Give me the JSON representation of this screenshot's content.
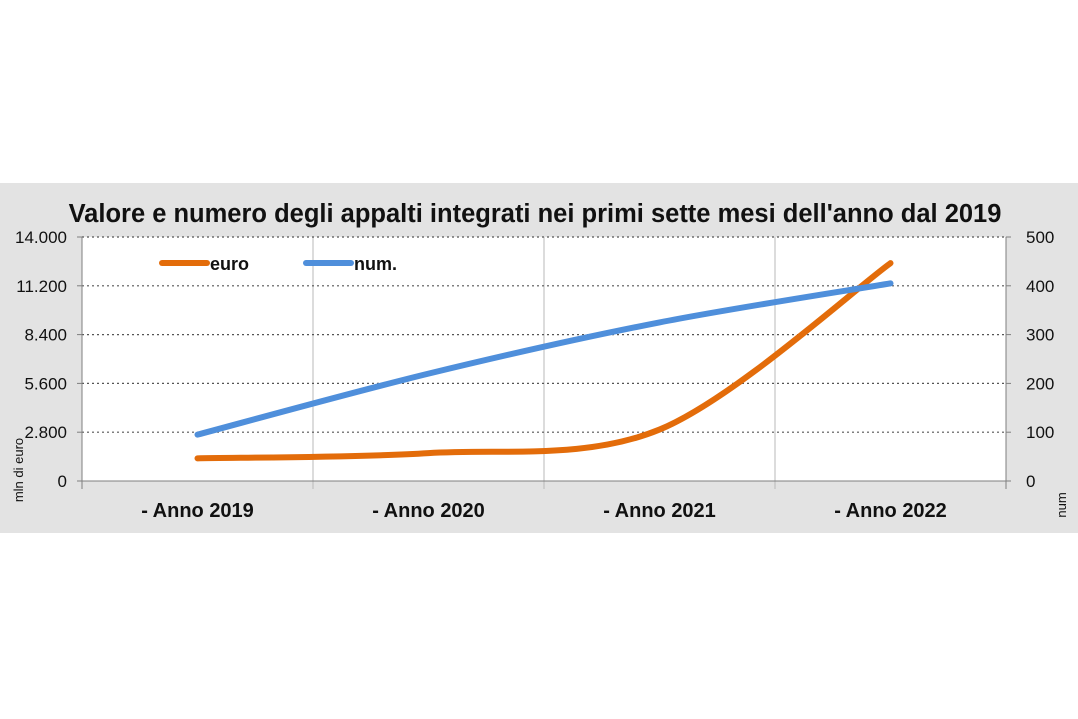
{
  "chart_data": {
    "type": "line",
    "title": "Valore e numero degli appalti integrati nei primi sette mesi dell'anno dal 2019",
    "categories": [
      "- Anno 2019",
      "- Anno 2020",
      "- Anno 2021",
      "- Anno 2022"
    ],
    "y_left": {
      "label": "mln di  euro",
      "ticks": [
        "0",
        "2.800",
        "5.600",
        "8.400",
        "11.200",
        "14.000"
      ],
      "ylim": [
        0,
        14000
      ]
    },
    "y_right": {
      "label": "num",
      "ticks": [
        "0",
        "100",
        "200",
        "300",
        "400",
        "500"
      ],
      "ylim": [
        0,
        500
      ]
    },
    "series": [
      {
        "name": "euro",
        "axis": "left",
        "color": "#e36c0a",
        "values": [
          1300,
          1600,
          2950,
          12500
        ]
      },
      {
        "name": "num.",
        "axis": "right",
        "color": "#4f8fdb",
        "values": [
          95,
          220,
          325,
          405
        ]
      }
    ],
    "grid": "dotted horizontal, solid vertical category separators",
    "legend_position": "top-left, inside plot"
  }
}
